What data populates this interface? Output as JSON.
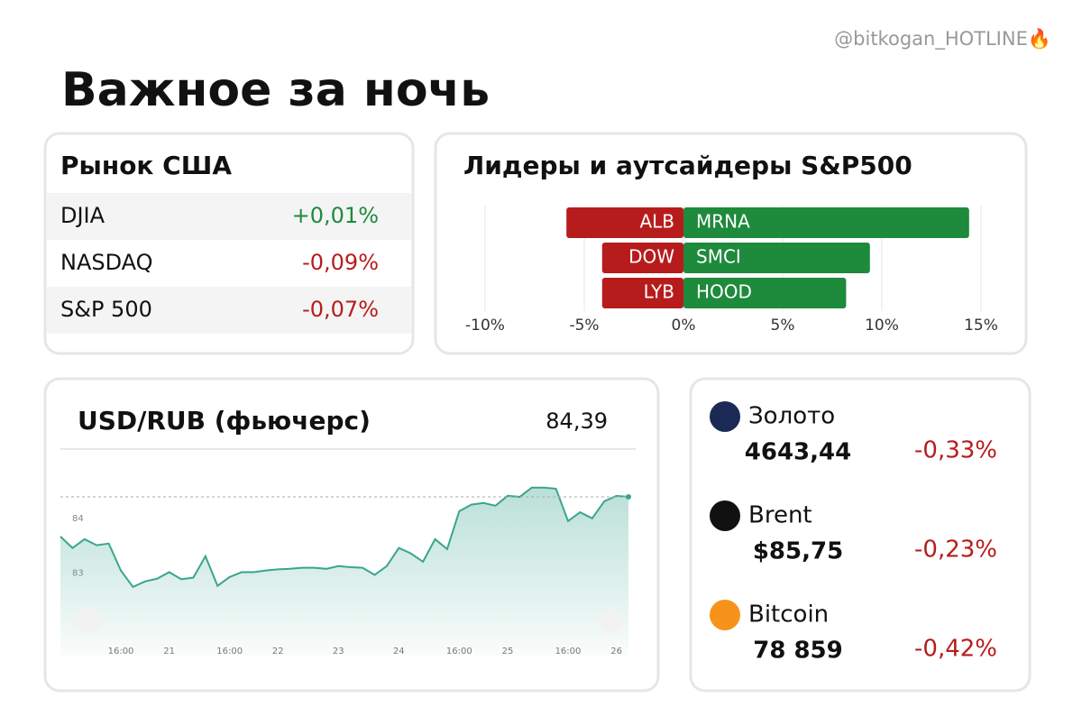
{
  "handle": "@bitkogan_HOTLINE🔥",
  "title": "Важное за ночь",
  "us_market": {
    "title": "Рынок США",
    "rows": [
      {
        "name": "DJIA",
        "change": "+0,01%",
        "color": "#1e8a3c"
      },
      {
        "name": "NASDAQ",
        "change": "-0,09%",
        "color": "#b71c1c"
      },
      {
        "name": "S&P 500",
        "change": "-0,07%",
        "color": "#b71c1c"
      }
    ]
  },
  "chart_data": [
    {
      "type": "bar",
      "orientation": "horizontal",
      "title": "Лидеры и аутсайдеры S&P500",
      "series": [
        {
          "color": "#b71c1c",
          "labels": [
            "ALB",
            "DOW",
            "LYB"
          ],
          "values": [
            -5.9,
            -4.1,
            -4.1
          ]
        },
        {
          "color": "#1e8a3c",
          "labels": [
            "MRNA",
            "SMCI",
            "HOOD"
          ],
          "values": [
            14.4,
            9.4,
            8.2
          ]
        }
      ],
      "xlim": [
        -10,
        15
      ],
      "xticks": [
        {
          "value": -10,
          "label": "-10%"
        },
        {
          "value": -5,
          "label": "-5%"
        },
        {
          "value": 0,
          "label": "0%"
        },
        {
          "value": 5,
          "label": "5%"
        },
        {
          "value": 10,
          "label": "10%"
        },
        {
          "value": 15,
          "label": "15%"
        }
      ],
      "grid": true
    },
    {
      "type": "line",
      "title": "USD/RUB (фьючерс)",
      "price_label": "84,39",
      "color": "#3aa58d",
      "values": [
        83.67,
        83.46,
        83.62,
        83.51,
        83.54,
        83.05,
        82.75,
        82.85,
        82.9,
        83.02,
        82.89,
        82.92,
        83.31,
        82.77,
        82.93,
        83.02,
        83.02,
        83.05,
        83.07,
        83.08,
        83.1,
        83.1,
        83.08,
        83.13,
        83.11,
        83.1,
        82.97,
        83.13,
        83.46,
        83.36,
        83.21,
        83.62,
        83.44,
        84.13,
        84.25,
        84.28,
        84.23,
        84.41,
        84.39,
        84.56,
        84.56,
        84.54,
        83.95,
        84.11,
        84,
        84.31,
        84.41,
        84.39
      ],
      "xlim": [
        0,
        47
      ],
      "ylim": [
        81.5,
        84.9
      ],
      "yticks": [
        83,
        84
      ],
      "xticks": [
        {
          "value": 5,
          "label": "16:00"
        },
        {
          "value": 9,
          "label": "21"
        },
        {
          "value": 14,
          "label": "16:00"
        },
        {
          "value": 18,
          "label": "22"
        },
        {
          "value": 23,
          "label": "23"
        },
        {
          "value": 28,
          "label": "24"
        },
        {
          "value": 33,
          "label": "16:00"
        },
        {
          "value": 37,
          "label": "25"
        },
        {
          "value": 42,
          "label": "16:00"
        },
        {
          "value": 46,
          "label": "26"
        }
      ]
    }
  ],
  "assets": {
    "change_color": "#b71c1c",
    "items": [
      {
        "name": "Золото",
        "price": "4643,44",
        "change": "-0,33%"
      },
      {
        "name": "Brent",
        "price": "$85,75",
        "change": "-0,23%"
      },
      {
        "name": "Bitcoin",
        "price": "78 859",
        "change": "-0,42%"
      }
    ]
  }
}
